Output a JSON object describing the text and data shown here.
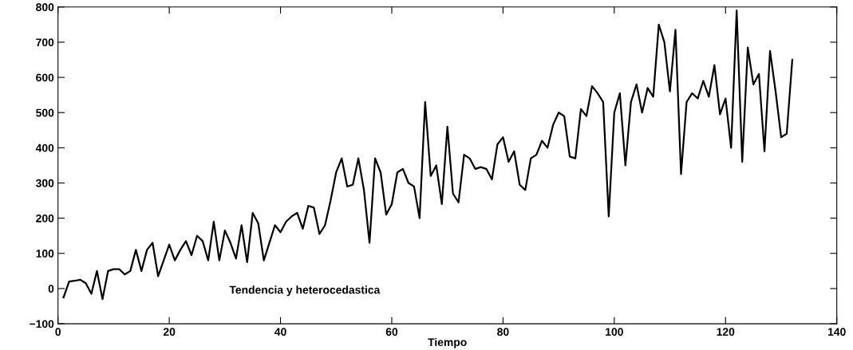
{
  "chart_data": {
    "type": "line",
    "xlabel": "Tiempo",
    "annotations": [
      "Tendencia y heterocedastica"
    ],
    "x": [
      1,
      2,
      3,
      4,
      5,
      6,
      7,
      8,
      9,
      10,
      11,
      12,
      13,
      14,
      15,
      16,
      17,
      18,
      19,
      20,
      21,
      22,
      23,
      24,
      25,
      26,
      27,
      28,
      29,
      30,
      31,
      32,
      33,
      34,
      35,
      36,
      37,
      38,
      39,
      40,
      41,
      42,
      43,
      44,
      45,
      46,
      47,
      48,
      49,
      50,
      51,
      52,
      53,
      54,
      55,
      56,
      57,
      58,
      59,
      60,
      61,
      62,
      63,
      64,
      65,
      66,
      67,
      68,
      69,
      70,
      71,
      72,
      73,
      74,
      75,
      76,
      77,
      78,
      79,
      80,
      81,
      82,
      83,
      84,
      85,
      86,
      87,
      88,
      89,
      90,
      91,
      92,
      93,
      94,
      95,
      96,
      97,
      98,
      99,
      100,
      101,
      102,
      103,
      104,
      105,
      106,
      107,
      108,
      109,
      110,
      111,
      112,
      113,
      114,
      115,
      116,
      117,
      118,
      119,
      120,
      121,
      122,
      123,
      124,
      125,
      126,
      127,
      128,
      129,
      130,
      131,
      132
    ],
    "series": [
      {
        "color": "#000000",
        "values": [
          -25,
          20,
          22,
          25,
          15,
          -15,
          50,
          -30,
          50,
          55,
          55,
          40,
          50,
          110,
          50,
          110,
          130,
          35,
          80,
          125,
          80,
          110,
          135,
          95,
          150,
          135,
          80,
          190,
          80,
          165,
          130,
          85,
          180,
          75,
          215,
          185,
          80,
          130,
          180,
          160,
          190,
          205,
          215,
          170,
          235,
          230,
          155,
          180,
          250,
          330,
          370,
          290,
          295,
          370,
          280,
          130,
          370,
          330,
          210,
          240,
          330,
          340,
          300,
          290,
          200,
          530,
          320,
          350,
          240,
          460,
          270,
          245,
          380,
          370,
          340,
          345,
          340,
          310,
          410,
          430,
          360,
          390,
          295,
          280,
          370,
          380,
          420,
          400,
          465,
          500,
          490,
          375,
          370,
          510,
          490,
          575,
          555,
          530,
          205,
          500,
          555,
          350,
          530,
          580,
          500,
          570,
          545,
          750,
          700,
          560,
          735,
          325,
          530,
          555,
          540,
          590,
          545,
          635,
          495,
          540,
          400,
          790,
          360,
          685,
          580,
          610,
          390,
          675,
          560,
          430,
          440,
          650
        ]
      }
    ],
    "xlim": [
      0,
      140
    ],
    "xticks": [
      0,
      20,
      40,
      60,
      80,
      100,
      120,
      140
    ],
    "ylim": [
      -100,
      800
    ],
    "yticks": [
      {
        "value": -100,
        "label": "−100"
      },
      0,
      100,
      200,
      300,
      400,
      500,
      600,
      700,
      800
    ],
    "grid": false,
    "marker": "none",
    "line_style": "solid"
  }
}
